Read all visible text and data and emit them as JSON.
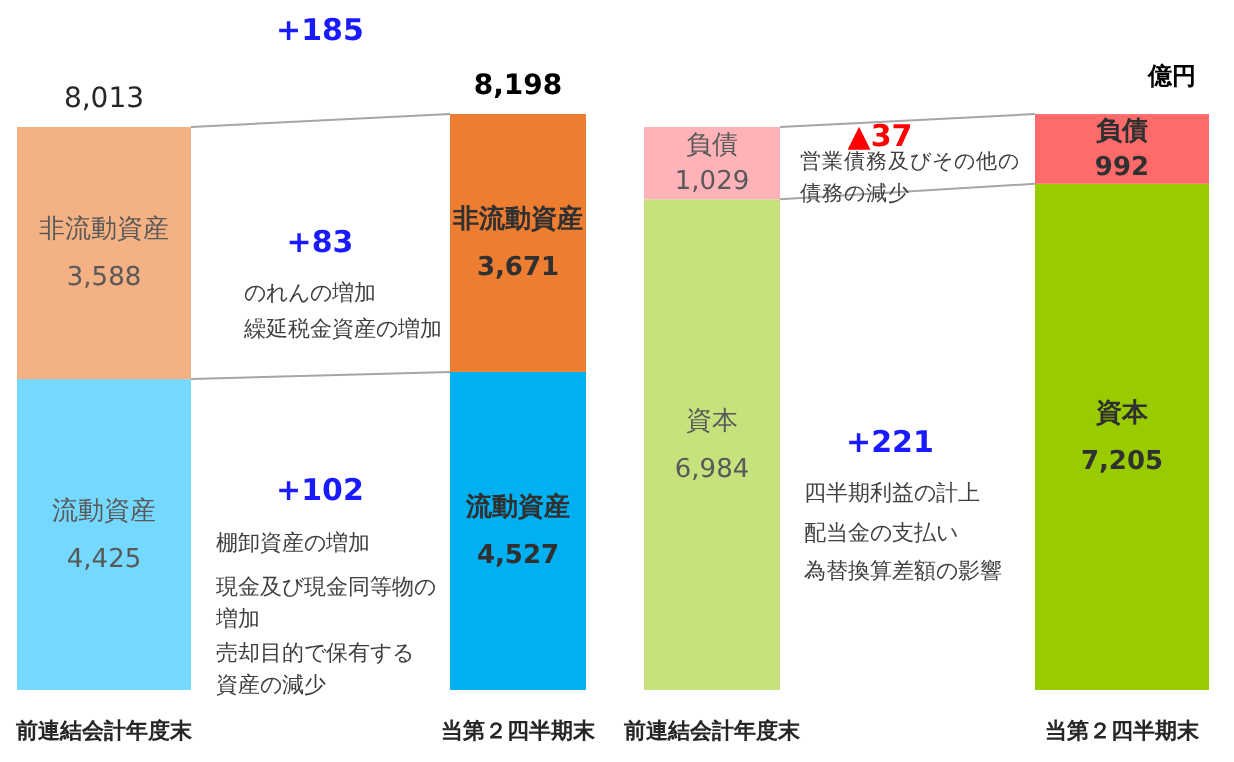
{
  "chart_data": {
    "type": "bar",
    "stacked": true,
    "categories": [
      "前連結会計年度末",
      "当第２四半期末",
      "前連結会計年度末",
      "当第２四半期末"
    ],
    "series": [
      {
        "name": "流動資産",
        "colors": [
          "#75d9ff",
          "#00b0f0",
          null,
          null
        ],
        "values": [
          4425,
          4527,
          null,
          null
        ],
        "value_labels": [
          "4,425",
          "4,527",
          null,
          null
        ]
      },
      {
        "name": "非流動資産",
        "colors": [
          "#f4b183",
          "#ed7d31",
          null,
          null
        ],
        "values": [
          3588,
          3671,
          null,
          null
        ],
        "value_labels": [
          "3,588",
          "3,671",
          null,
          null
        ]
      },
      {
        "name": "資本",
        "colors": [
          null,
          null,
          "#c5e27c",
          "#99cc00"
        ],
        "values": [
          null,
          null,
          6984,
          7205
        ],
        "value_labels": [
          null,
          null,
          "6,984",
          "7,205"
        ]
      },
      {
        "name": "負債",
        "colors": [
          null,
          null,
          "#ffb3b8",
          "#ff6b6b"
        ],
        "values": [
          null,
          null,
          1029,
          992
        ],
        "value_labels": [
          null,
          null,
          "1,029",
          "992"
        ]
      }
    ],
    "totals": [
      "8,013",
      "8,198",
      null,
      null
    ],
    "annotations": [
      "億円",
      "+185",
      "+83",
      "のれんの増加",
      "繰延税金資産の増加",
      "+102",
      "棚卸資産の増加",
      "現金及び現金同等物の増加",
      "売却目的で保有する資産の減少",
      "▲37",
      "営業債務及びその他の債務の減少",
      "+221",
      "四半期利益の計上",
      "配当金の支払い",
      "為替換算差額の影響"
    ]
  }
}
